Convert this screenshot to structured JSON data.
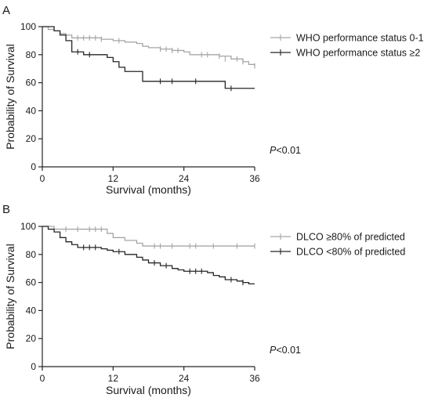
{
  "chart_data": [
    {
      "type": "line",
      "panel_label": "A",
      "title": "",
      "xlabel": "Survival (months)",
      "ylabel": "Probability of Survival",
      "xlim": [
        0,
        36
      ],
      "ylim": [
        0,
        100
      ],
      "xticks": [
        0,
        12,
        24,
        36
      ],
      "yticks": [
        0,
        20,
        40,
        60,
        80,
        100
      ],
      "grid": false,
      "legend_position": "top-right",
      "annotation_prefix": "P",
      "annotation_suffix": "<0.01",
      "series": [
        {
          "name": "WHO performance status 0-1",
          "color": "#a6a6a6",
          "steps": [
            [
              0,
              100
            ],
            [
              1,
              98
            ],
            [
              2,
              97
            ],
            [
              3,
              95
            ],
            [
              4,
              94
            ],
            [
              5,
              92
            ],
            [
              10,
              91
            ],
            [
              12,
              90
            ],
            [
              14,
              89
            ],
            [
              16,
              88
            ],
            [
              17,
              86
            ],
            [
              18,
              85
            ],
            [
              20,
              84
            ],
            [
              22,
              83
            ],
            [
              24,
              82
            ],
            [
              25,
              80
            ],
            [
              30,
              79
            ],
            [
              32,
              77
            ],
            [
              34,
              75
            ],
            [
              35,
              73
            ],
            [
              36,
              72
            ]
          ],
          "censored": [
            [
              6,
              92
            ],
            [
              7,
              92
            ],
            [
              8,
              92
            ],
            [
              9,
              92
            ],
            [
              10,
              91
            ],
            [
              13,
              90
            ],
            [
              20,
              84
            ],
            [
              21,
              84
            ],
            [
              22,
              83
            ],
            [
              23,
              83
            ],
            [
              27,
              80
            ],
            [
              28,
              80
            ],
            [
              30,
              79
            ],
            [
              31,
              77
            ],
            [
              33,
              77
            ],
            [
              34,
              75
            ],
            [
              36,
              72
            ]
          ]
        },
        {
          "name": "WHO performance status ≥2",
          "color": "#262626",
          "steps": [
            [
              0,
              100
            ],
            [
              2,
              97
            ],
            [
              3,
              94
            ],
            [
              4,
              90
            ],
            [
              5,
              82
            ],
            [
              7,
              80
            ],
            [
              11,
              78
            ],
            [
              12,
              75
            ],
            [
              13,
              71
            ],
            [
              14,
              68
            ],
            [
              17,
              61
            ],
            [
              31,
              56
            ],
            [
              36,
              56
            ]
          ],
          "censored": [
            [
              6,
              82
            ],
            [
              8,
              80
            ],
            [
              20,
              61
            ],
            [
              22,
              61
            ],
            [
              26,
              61
            ],
            [
              32,
              56
            ]
          ]
        }
      ]
    },
    {
      "type": "line",
      "panel_label": "B",
      "title": "",
      "xlabel": "Survival (months)",
      "ylabel": "Probability of Survival",
      "xlim": [
        0,
        36
      ],
      "ylim": [
        0,
        100
      ],
      "xticks": [
        0,
        12,
        24,
        36
      ],
      "yticks": [
        0,
        20,
        40,
        60,
        80,
        100
      ],
      "grid": false,
      "legend_position": "top-right",
      "annotation_prefix": "P",
      "annotation_suffix": "<0.01",
      "series": [
        {
          "name": "DLCO ≥80% of predicted",
          "color": "#a6a6a6",
          "steps": [
            [
              0,
              100
            ],
            [
              2,
              98
            ],
            [
              11,
              95
            ],
            [
              12,
              92
            ],
            [
              14,
              90
            ],
            [
              16,
              88
            ],
            [
              17,
              86
            ],
            [
              36,
              86
            ]
          ],
          "censored": [
            [
              4,
              98
            ],
            [
              6,
              98
            ],
            [
              8,
              98
            ],
            [
              9,
              98
            ],
            [
              10,
              98
            ],
            [
              19,
              86
            ],
            [
              20,
              86
            ],
            [
              22,
              86
            ],
            [
              25,
              86
            ],
            [
              26,
              86
            ],
            [
              29,
              86
            ],
            [
              33,
              86
            ],
            [
              36,
              86
            ]
          ]
        },
        {
          "name": "DLCO <80% of predicted",
          "color": "#262626",
          "steps": [
            [
              0,
              100
            ],
            [
              1,
              98
            ],
            [
              2,
              96
            ],
            [
              3,
              92
            ],
            [
              4,
              89
            ],
            [
              5,
              87
            ],
            [
              6,
              85
            ],
            [
              10,
              84
            ],
            [
              11,
              83
            ],
            [
              12,
              82
            ],
            [
              14,
              80
            ],
            [
              16,
              78
            ],
            [
              17,
              76
            ],
            [
              18,
              74
            ],
            [
              20,
              72
            ],
            [
              22,
              70
            ],
            [
              23,
              69
            ],
            [
              24,
              68
            ],
            [
              28,
              67
            ],
            [
              29,
              65
            ],
            [
              30,
              64
            ],
            [
              31,
              62
            ],
            [
              33,
              61
            ],
            [
              34,
              60
            ],
            [
              35,
              59
            ],
            [
              36,
              59
            ]
          ],
          "censored": [
            [
              7,
              85
            ],
            [
              8,
              85
            ],
            [
              9,
              85
            ],
            [
              13,
              82
            ],
            [
              19,
              74
            ],
            [
              21,
              72
            ],
            [
              25,
              68
            ],
            [
              26,
              68
            ],
            [
              27,
              68
            ],
            [
              32,
              62
            ],
            [
              34,
              60
            ]
          ]
        }
      ]
    }
  ]
}
